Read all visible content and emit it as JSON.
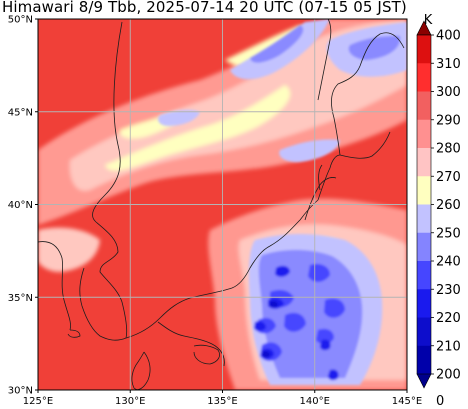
{
  "title": "Himawari 8/9 Tbb, 2025-07-14 20 UTC (07-15 05 JST)",
  "map": {
    "lon_range": [
      125,
      145
    ],
    "lat_range": [
      30,
      50
    ],
    "lon_ticks": [
      {
        "value": 125,
        "label": "125°E"
      },
      {
        "value": 130,
        "label": "130°E"
      },
      {
        "value": 135,
        "label": "135°E"
      },
      {
        "value": 140,
        "label": "140°E"
      },
      {
        "value": 145,
        "label": "145°E"
      }
    ],
    "lat_ticks": [
      {
        "value": 30,
        "label": "30°N"
      },
      {
        "value": 35,
        "label": "35°N"
      },
      {
        "value": 40,
        "label": "40°N"
      },
      {
        "value": 45,
        "label": "45°N"
      },
      {
        "value": 50,
        "label": "50°N"
      }
    ],
    "gridlines": true
  },
  "colorbar": {
    "unit": "K",
    "extend": "both",
    "levels": [
      {
        "value": 200,
        "label": "200",
        "color": "#0000aa"
      },
      {
        "value": 210,
        "label": "210",
        "color": "#0d0dcc"
      },
      {
        "value": 220,
        "label": "220",
        "color": "#1a1aee"
      },
      {
        "value": 230,
        "label": "230",
        "color": "#4646ff"
      },
      {
        "value": 240,
        "label": "240",
        "color": "#8484ff"
      },
      {
        "value": 250,
        "label": "250",
        "color": "#c2c2ff"
      },
      {
        "value": 260,
        "label": "260",
        "color": "#ffffc0"
      },
      {
        "value": 270,
        "label": "270",
        "color": "#ffc4c4"
      },
      {
        "value": 280,
        "label": "280",
        "color": "#ff9090"
      },
      {
        "value": 290,
        "label": "290",
        "color": "#f26060"
      },
      {
        "value": 300,
        "label": "300",
        "color": "#ff2e2e"
      },
      {
        "value": 310,
        "label": "310",
        "color": "#dd1010"
      },
      {
        "value": 400,
        "label": "400",
        "color": "#b00000"
      }
    ],
    "under_color": "#00008b",
    "over_color": "#8b0000",
    "bottom_label": "0"
  },
  "colors": {
    "background_warm": "#f03c34",
    "land_warm": "#f04a42",
    "coast": "#202020"
  }
}
